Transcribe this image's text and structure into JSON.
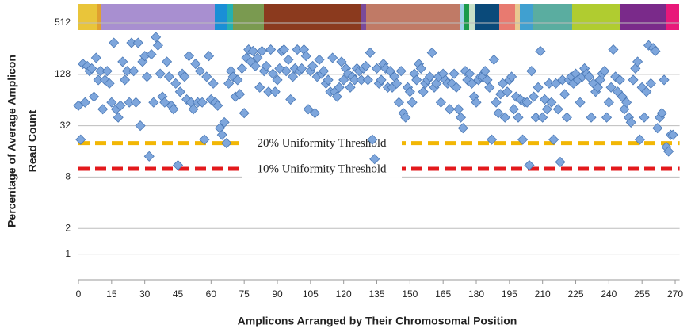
{
  "chart_data": {
    "type": "scatter",
    "x_label": "Amplicons Arranged by Their Chromosomal Position",
    "y_label": [
      "Percentage of Average Amplicon",
      "Read Count"
    ],
    "log_scale_y": true,
    "grid": true,
    "xlim": [
      0,
      272
    ],
    "xticks": [
      0,
      15,
      30,
      45,
      60,
      75,
      90,
      105,
      120,
      135,
      150,
      165,
      180,
      195,
      210,
      225,
      240,
      255,
      270
    ],
    "ylim": [
      0.5,
      860
    ],
    "yticks": [
      1,
      2,
      8,
      32,
      128,
      512
    ],
    "thresholds": [
      {
        "value": 20,
        "label": "20% Uniformity Threshold",
        "color": "#f2b705"
      },
      {
        "value": 10,
        "label": "10% Uniformity Threshold",
        "color": "#e3191c"
      }
    ],
    "series": [
      {
        "color": "#7ea6dc",
        "x": [
          0,
          1,
          2,
          3,
          4,
          5,
          6,
          7,
          8,
          9,
          10,
          11,
          12,
          13,
          14,
          15,
          16,
          17,
          18,
          19,
          20,
          21,
          22,
          23,
          24,
          25,
          26,
          27,
          28,
          29,
          30,
          31,
          32,
          33,
          34,
          35,
          36,
          37,
          38,
          39,
          40,
          41,
          42,
          43,
          44,
          45,
          46,
          47,
          48,
          49,
          50,
          51,
          52,
          53,
          54,
          55,
          56,
          57,
          58,
          59,
          60,
          61,
          62,
          63,
          64,
          65,
          66,
          67,
          68,
          69,
          70,
          71,
          72,
          73,
          74,
          75,
          76,
          77,
          78,
          79,
          80,
          81,
          82,
          83,
          84,
          85,
          86,
          87,
          88,
          89,
          90,
          91,
          92,
          93,
          94,
          95,
          96,
          97,
          98,
          99,
          100,
          101,
          102,
          103,
          104,
          105,
          106,
          107,
          108,
          109,
          110,
          111,
          112,
          113,
          114,
          115,
          116,
          117,
          118,
          119,
          120,
          121,
          122,
          123,
          124,
          125,
          126,
          127,
          128,
          129,
          130,
          131,
          132,
          133,
          134,
          135,
          136,
          137,
          138,
          139,
          140,
          141,
          142,
          143,
          144,
          145,
          146,
          147,
          148,
          149,
          150,
          151,
          152,
          153,
          154,
          155,
          156,
          157,
          158,
          159,
          160,
          161,
          162,
          163,
          164,
          165,
          166,
          167,
          168,
          169,
          170,
          171,
          172,
          173,
          174,
          175,
          176,
          177,
          178,
          179,
          180,
          181,
          182,
          183,
          184,
          185,
          186,
          187,
          188,
          189,
          190,
          191,
          192,
          193,
          194,
          195,
          196,
          197,
          198,
          199,
          200,
          201,
          202,
          203,
          204,
          205,
          206,
          207,
          208,
          209,
          210,
          211,
          212,
          213,
          214,
          215,
          216,
          217,
          218,
          219,
          220,
          221,
          222,
          223,
          224,
          225,
          226,
          227,
          228,
          229,
          230,
          231,
          232,
          233,
          234,
          235,
          236,
          237,
          238,
          239,
          240,
          241,
          242,
          243,
          244,
          245,
          246,
          247,
          248,
          249,
          250,
          251,
          252,
          253,
          254,
          255,
          256,
          257,
          258,
          259,
          260,
          261,
          262,
          263,
          264,
          265,
          266,
          267,
          268,
          269
        ],
        "values": [
          55,
          22,
          170,
          60,
          160,
          140,
          150,
          70,
          200,
          110,
          140,
          50,
          110,
          140,
          100,
          60,
          300,
          50,
          40,
          55,
          180,
          110,
          140,
          60,
          300,
          140,
          60,
          300,
          32,
          180,
          210,
          120,
          14,
          220,
          60,
          350,
          280,
          130,
          70,
          60,
          180,
          120,
          55,
          50,
          100,
          11,
          80,
          130,
          120,
          65,
          210,
          60,
          50,
          170,
          60,
          140,
          60,
          22,
          120,
          210,
          65,
          100,
          60,
          55,
          30,
          25,
          35,
          20,
          100,
          140,
          120,
          70,
          110,
          75,
          150,
          45,
          200,
          250,
          180,
          240,
          160,
          200,
          90,
          240,
          140,
          160,
          80,
          250,
          130,
          80,
          110,
          150,
          240,
          250,
          140,
          190,
          65,
          120,
          150,
          250,
          140,
          150,
          250,
          210,
          50,
          140,
          160,
          45,
          120,
          190,
          130,
          140,
          100,
          110,
          80,
          200,
          80,
          70,
          90,
          180,
          110,
          150,
          130,
          90,
          120,
          110,
          150,
          140,
          110,
          150,
          160,
          110,
          230,
          22,
          13,
          150,
          100,
          110,
          170,
          150,
          90,
          140,
          90,
          120,
          100,
          60,
          140,
          45,
          40,
          90,
          80,
          60,
          130,
          110,
          170,
          150,
          80,
          100,
          110,
          120,
          230,
          90,
          100,
          120,
          60,
          130,
          110,
          100,
          50,
          100,
          130,
          90,
          50,
          40,
          30,
          140,
          110,
          130,
          100,
          70,
          60,
          110,
          120,
          120,
          140,
          110,
          90,
          22,
          190,
          60,
          45,
          75,
          100,
          40,
          80,
          110,
          120,
          50,
          70,
          40,
          65,
          22,
          60,
          60,
          11,
          140,
          70,
          40,
          90,
          240,
          40,
          65,
          50,
          100,
          60,
          22,
          100,
          50,
          12,
          110,
          75,
          40,
          110,
          120,
          100,
          130,
          110,
          60,
          120,
          150,
          130,
          120,
          40,
          100,
          80,
          90,
          110,
          130,
          140,
          40,
          60,
          90,
          250,
          120,
          80,
          110,
          70,
          50,
          60,
          40,
          35,
          110,
          150,
          180,
          22,
          90,
          40,
          80,
          280,
          100,
          260,
          240,
          30,
          40,
          45,
          110,
          18,
          16,
          25,
          25
        ]
      }
    ]
  }
}
